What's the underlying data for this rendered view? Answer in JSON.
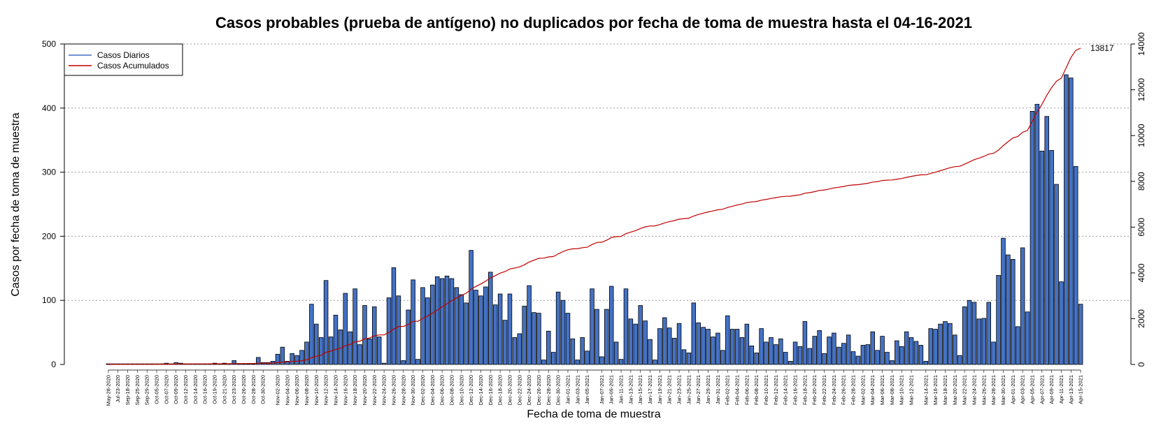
{
  "chart_data": {
    "type": "bar",
    "title": "Casos probables (prueba de antígeno) no duplicados por fecha de toma de muestra hasta el 04-16-2021",
    "xlabel": "Fecha de toma de muestra",
    "ylabel": "Casos por fecha de toma de muestra",
    "ylim": [
      0,
      500
    ],
    "y2lim": [
      0,
      14000
    ],
    "yticks": [
      0,
      100,
      200,
      300,
      400,
      500
    ],
    "y2ticks": [
      0,
      2000,
      4000,
      6000,
      8000,
      10000,
      12000,
      14000
    ],
    "grid": "horizontal dotted",
    "legend_position": "top-left",
    "series": [
      {
        "name": "Casos Diarios",
        "color": "#4472C4",
        "values": [
          1,
          1,
          1,
          1,
          1,
          1,
          1,
          1,
          1,
          1,
          1,
          1,
          2,
          1,
          3,
          2,
          1,
          1,
          1,
          1,
          1,
          1,
          2,
          1,
          2,
          1,
          6,
          1,
          1,
          1,
          1,
          11,
          3,
          3,
          5,
          16,
          27,
          5,
          17,
          14,
          22,
          35,
          94,
          63,
          42,
          131,
          43,
          77,
          54,
          111,
          51,
          118,
          31,
          92,
          40,
          90,
          43,
          2,
          104,
          151,
          107,
          6,
          85,
          132,
          8,
          120,
          104,
          124,
          137,
          134,
          138,
          134,
          120,
          109,
          96,
          178,
          116,
          107,
          121,
          144,
          93,
          110,
          69,
          110,
          42,
          48,
          91,
          123,
          81,
          80,
          7,
          52,
          19,
          113,
          100,
          80,
          40,
          7,
          42,
          21,
          118,
          86,
          12,
          86,
          122,
          35,
          8,
          118,
          71,
          63,
          92,
          68,
          39,
          7,
          56,
          73,
          57,
          41,
          64,
          23,
          18,
          96,
          65,
          58,
          55,
          43,
          49,
          22,
          76,
          55,
          55,
          42,
          63,
          29,
          18,
          56,
          35,
          42,
          31,
          40,
          19,
          5,
          35,
          28,
          67,
          25,
          44,
          53,
          17,
          43,
          49,
          27,
          33,
          46,
          20,
          13,
          30,
          31,
          51,
          22,
          44,
          19,
          6,
          37,
          28,
          51,
          42,
          36,
          30,
          5,
          56,
          55,
          63,
          67,
          64,
          46,
          14,
          90,
          100,
          97,
          71,
          72,
          97,
          35,
          139,
          197,
          171,
          164,
          59,
          182,
          82,
          395,
          406,
          333,
          387,
          334,
          281,
          129,
          452,
          447,
          309,
          94
        ]
      },
      {
        "name": "Casos Acumulados",
        "color": "#C00000",
        "axis": "right",
        "end_value": 13817,
        "end_label": "13817"
      }
    ],
    "date_labels": [
      "May-28-2020",
      "Jul-23-2020",
      "Sep-18-2020",
      "Sep-25-2020",
      "Sep-29-2020",
      "Oct-05-2020",
      "Oct-07-2020",
      "Oct-09-2020",
      "Oct-12-2020",
      "Oct-14-2020",
      "Oct-16-2020",
      "Oct-19-2020",
      "Oct-21-2020",
      "Oct-23-2020",
      "Oct-26-2020",
      "Oct-28-2020",
      "Oct-30-2020",
      "Nov-02-2020",
      "Nov-04-2020",
      "Nov-06-2020",
      "Nov-08-2020",
      "Nov-10-2020",
      "Nov-12-2020",
      "Nov-14-2020",
      "Nov-16-2020",
      "Nov-18-2020",
      "Nov-20-2020",
      "Nov-22-2020",
      "Nov-24-2020",
      "Nov-26-2020",
      "Nov-28-2020",
      "Nov-30-2020",
      "Dec-02-2020",
      "Dec-04-2020",
      "Dec-06-2020",
      "Dec-08-2020",
      "Dec-10-2020",
      "Dec-12-2020",
      "Dec-14-2020",
      "Dec-16-2020",
      "Dec-18-2020",
      "Dec-20-2020",
      "Dec-22-2020",
      "Dec-24-2020",
      "Dec-26-2020",
      "Dec-28-2020",
      "Dec-30-2020",
      "Jan-01-2021",
      "Jan-03-2021",
      "Jan-05-2021",
      "Jan-07-2021",
      "Jan-09-2021",
      "Jan-11-2021",
      "Jan-13-2021",
      "Jan-15-2021",
      "Jan-17-2021",
      "Jan-19-2021",
      "Jan-21-2021",
      "Jan-23-2021",
      "Jan-25-2021",
      "Jan-27-2021",
      "Jan-29-2021",
      "Jan-31-2021",
      "Feb-02-2021",
      "Feb-04-2021",
      "Feb-06-2021",
      "Feb-08-2021",
      "Feb-10-2021",
      "Feb-12-2021",
      "Feb-14-2021",
      "Feb-16-2021",
      "Feb-18-2021",
      "Feb-20-2021",
      "Feb-22-2021",
      "Feb-24-2021",
      "Feb-26-2021",
      "Feb-28-2021",
      "Mar-02-2021",
      "Mar-04-2021",
      "Mar-06-2021",
      "Mar-08-2021",
      "Mar-10-2021",
      "Mar-12-2021",
      "Mar-14-2021",
      "Mar-16-2021",
      "Mar-18-2021",
      "Mar-20-2021",
      "Mar-22-2021",
      "Mar-24-2021",
      "Mar-26-2021",
      "Mar-28-2021",
      "Mar-30-2021",
      "Apr-01-2021",
      "Apr-03-2021",
      "Apr-05-2021",
      "Apr-07-2021",
      "Apr-09-2021",
      "Apr-11-2021",
      "Apr-13-2021",
      "Apr-15-2021"
    ]
  }
}
